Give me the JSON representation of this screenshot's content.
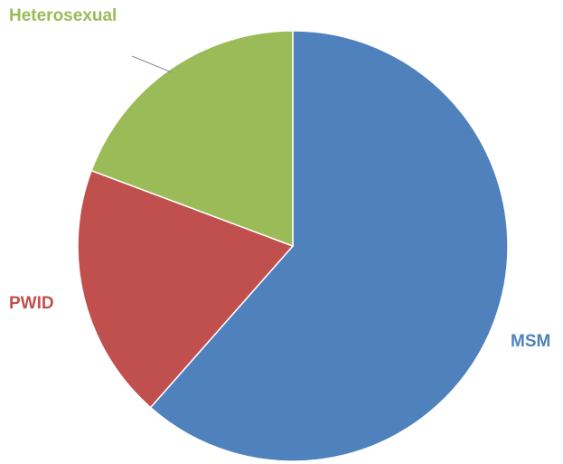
{
  "chart_data": {
    "type": "pie",
    "title": "",
    "slices": [
      {
        "label": "MSM",
        "value": 61.5,
        "color": "#4f81bd"
      },
      {
        "label": "PWID",
        "value": 19.2,
        "color": "#c0504d"
      },
      {
        "label": "Heterosexual",
        "value": 19.3,
        "color": "#9bbb59"
      }
    ],
    "start": "12 o'clock",
    "direction": "clockwise",
    "labels": "outside slices, colored like slices",
    "legend": "none"
  }
}
